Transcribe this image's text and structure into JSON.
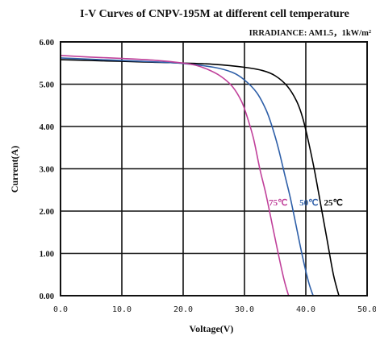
{
  "chart_data": {
    "type": "line",
    "title": "I-V Curves of CNPV-195M at different cell temperature",
    "subtitle": "IRRADIANCE:  AM1.5，1kW/m²",
    "xlabel": "Voltage(V)",
    "ylabel": "Current(A)",
    "xlim": [
      0,
      50
    ],
    "ylim": [
      0,
      6
    ],
    "xticks": [
      0,
      10,
      20,
      30,
      40,
      50
    ],
    "xtick_labels": [
      "0.0",
      "10.0",
      "20.0",
      "30.0",
      "40.0",
      "50.0"
    ],
    "yticks": [
      0,
      1,
      2,
      3,
      4,
      5,
      6
    ],
    "ytick_labels": [
      "0.00",
      "1.00",
      "2.00",
      "3.00",
      "4.00",
      "5.00",
      "6.00"
    ],
    "grid": true,
    "series": [
      {
        "name": "25℃",
        "color": "#000000",
        "x": [
          0,
          5,
          10,
          15,
          20,
          25,
          30,
          33,
          35,
          37,
          38.5,
          39.5,
          40.5,
          41.5,
          42.5,
          43.5,
          44.5,
          45.4
        ],
        "y": [
          5.58,
          5.56,
          5.54,
          5.52,
          5.5,
          5.47,
          5.4,
          5.32,
          5.2,
          4.95,
          4.6,
          4.2,
          3.6,
          2.9,
          2.1,
          1.3,
          0.5,
          0
        ]
      },
      {
        "name": "50℃",
        "color": "#2e5fa8",
        "x": [
          0,
          5,
          10,
          15,
          20,
          25,
          28,
          30,
          32,
          33.5,
          34.5,
          35.5,
          36.5,
          37.5,
          38.5,
          39.5,
          40.5,
          41.2
        ],
        "y": [
          5.62,
          5.59,
          5.56,
          5.53,
          5.49,
          5.4,
          5.28,
          5.1,
          4.8,
          4.4,
          4.0,
          3.5,
          2.9,
          2.3,
          1.6,
          0.9,
          0.3,
          0
        ]
      },
      {
        "name": "75℃",
        "color": "#c0409a",
        "x": [
          0,
          5,
          10,
          15,
          20,
          22,
          24,
          26,
          28,
          29.5,
          30.5,
          31.5,
          32.5,
          33.5,
          34.5,
          35.5,
          36.5,
          37.2
        ],
        "y": [
          5.68,
          5.64,
          5.61,
          5.57,
          5.5,
          5.45,
          5.35,
          5.2,
          4.95,
          4.6,
          4.2,
          3.7,
          3.0,
          2.4,
          1.7,
          1.0,
          0.35,
          0
        ]
      }
    ],
    "annotations": [
      {
        "text": "75℃",
        "x": 35.5,
        "y": 2.13,
        "color": "#c0409a"
      },
      {
        "text": "50℃",
        "x": 40.5,
        "y": 2.13,
        "color": "#2e5fa8"
      },
      {
        "text": "25℃",
        "x": 44.5,
        "y": 2.13,
        "color": "#000000"
      }
    ]
  }
}
